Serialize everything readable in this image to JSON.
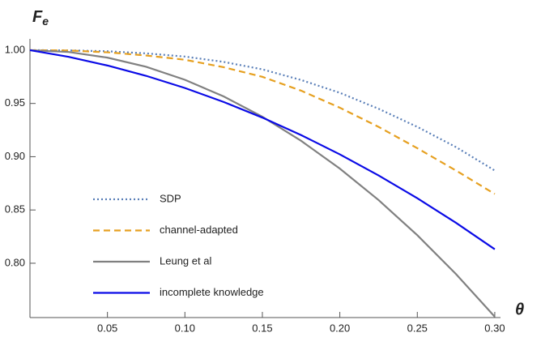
{
  "chart_data": {
    "type": "line",
    "ylabel": "F",
    "ylabel_subscript": "e",
    "xlabel": "θ",
    "x": [
      0,
      0.025,
      0.05,
      0.075,
      0.1,
      0.125,
      0.15,
      0.175,
      0.2,
      0.225,
      0.25,
      0.275,
      0.3
    ],
    "series": [
      {
        "name": "SDP",
        "color": "#5a7fb8",
        "dash": "dotted",
        "values": [
          1,
          0.9998,
          0.999,
          0.997,
          0.994,
          0.989,
          0.982,
          0.972,
          0.96,
          0.945,
          0.928,
          0.909,
          0.887
        ]
      },
      {
        "name": "channel-adapted",
        "color": "#e6a020",
        "dash": "dashed",
        "values": [
          1,
          0.9997,
          0.998,
          0.995,
          0.991,
          0.984,
          0.975,
          0.962,
          0.946,
          0.928,
          0.908,
          0.887,
          0.865
        ]
      },
      {
        "name": "Leung et al",
        "color": "#808080",
        "dash": "solid",
        "values": [
          1,
          0.9983,
          0.993,
          0.9844,
          0.9722,
          0.9566,
          0.9375,
          0.9149,
          0.8888,
          0.8593,
          0.8263,
          0.7898,
          0.7498
        ]
      },
      {
        "name": "incomplete knowledge",
        "color": "#0a0ae6",
        "dash": "solid",
        "values": [
          1,
          0.9937,
          0.9856,
          0.9759,
          0.9645,
          0.9514,
          0.9367,
          0.9203,
          0.9022,
          0.8824,
          0.861,
          0.8379,
          0.8131
        ]
      }
    ],
    "xlim": [
      0,
      0.3037
    ],
    "ylim": [
      0.749,
      1.0106
    ],
    "xticks": [
      0.05,
      {
        "value": 0.1,
        "label": "0.10"
      },
      0.15,
      {
        "value": 0.2,
        "label": "0.20"
      },
      0.25,
      {
        "value": 0.3,
        "label": "0.30"
      }
    ],
    "yticks": [
      {
        "value": 0.8,
        "label": "0.80"
      },
      0.85,
      {
        "value": 0.9,
        "label": "0.90"
      },
      0.95,
      {
        "value": 1.0,
        "label": "1.00"
      }
    ],
    "legend": "lower-left"
  }
}
